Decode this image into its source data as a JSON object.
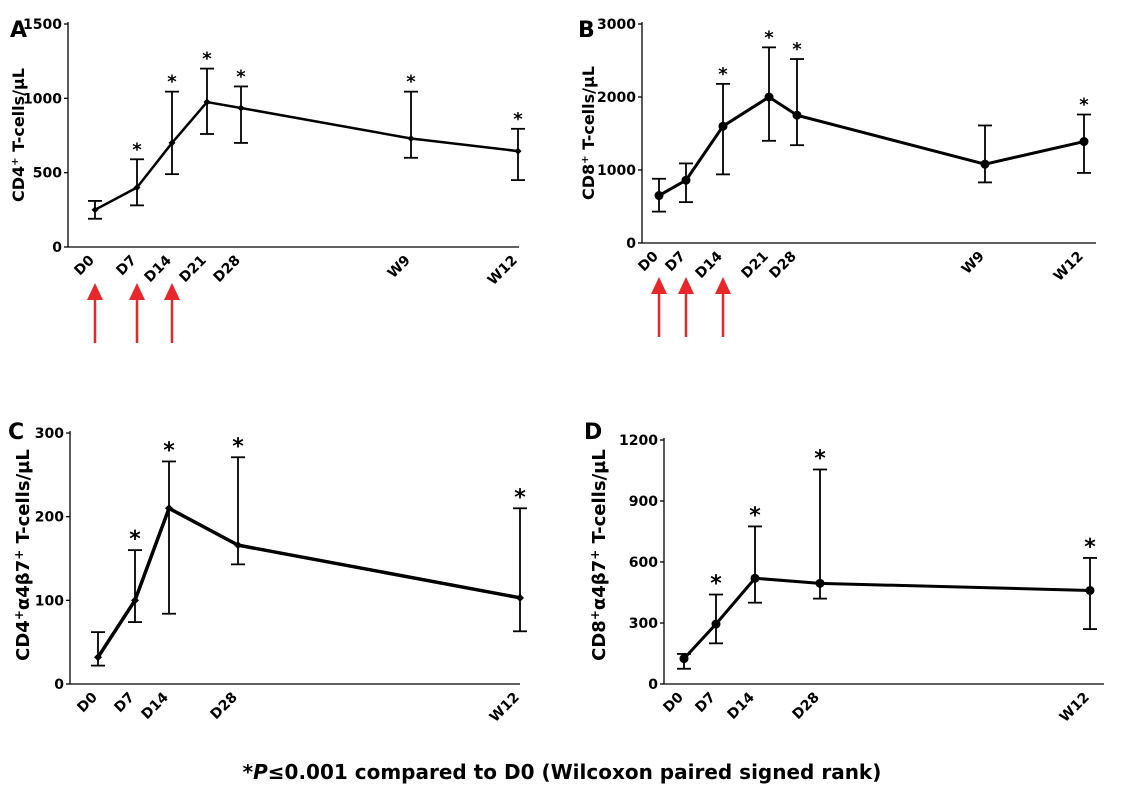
{
  "footnote": {
    "star": "*",
    "p": "P",
    "rest": "≤0.001 compared to D0 (Wilcoxon paired signed rank)"
  },
  "colors": {
    "line": "#000000",
    "arrow": "#e8272b"
  },
  "chart_data": [
    {
      "panel": "A",
      "type": "line",
      "ylabel_main": "CD4",
      "ylabel_sup": "+",
      "ylabel_rest": " T-cells/µL",
      "ylim": [
        0,
        1500
      ],
      "yticks": [
        0,
        500,
        1000,
        1500
      ],
      "marker": "diamond",
      "categories": [
        "D0",
        "D7",
        "D14",
        "D21",
        "D28",
        "W9",
        "W12"
      ],
      "x": [
        0,
        7,
        14,
        21,
        28,
        63,
        84
      ],
      "values": [
        250,
        400,
        700,
        975,
        935,
        730,
        645
      ],
      "err_low": [
        190,
        280,
        490,
        760,
        700,
        600,
        450
      ],
      "err_high": [
        310,
        590,
        1045,
        1200,
        1080,
        1045,
        795
      ],
      "significant": [
        false,
        true,
        true,
        true,
        true,
        true,
        true
      ],
      "arrows_at": [
        0,
        7,
        14
      ]
    },
    {
      "panel": "B",
      "type": "line",
      "ylabel_main": "CD8",
      "ylabel_sup": "+",
      "ylabel_rest": " T-cells/µL",
      "ylim": [
        0,
        3000
      ],
      "yticks": [
        0,
        1000,
        2000,
        3000
      ],
      "marker": "circle",
      "categories": [
        "D0",
        "D7",
        "D14",
        "D21",
        "D28",
        "W9",
        "W12"
      ],
      "x": [
        0,
        7,
        14,
        21,
        28,
        63,
        84
      ],
      "values": [
        650,
        860,
        1600,
        2000,
        1750,
        1080,
        1390
      ],
      "err_low": [
        430,
        560,
        940,
        1400,
        1340,
        830,
        960
      ],
      "err_high": [
        880,
        1090,
        2180,
        2680,
        2520,
        1610,
        1760
      ],
      "significant": [
        false,
        false,
        true,
        true,
        true,
        false,
        true
      ],
      "arrows_at": [
        0,
        7,
        14
      ]
    },
    {
      "panel": "C",
      "type": "line",
      "ylabel_main": "CD4",
      "ylabel_sup": "+",
      "ylabel_rest": "α4β7",
      "ylabel_sup2": "+",
      "ylabel_rest2": " T-cells/µL",
      "ylim": [
        0,
        300
      ],
      "yticks": [
        0,
        100,
        200,
        300
      ],
      "marker": "diamond",
      "categories": [
        "D0",
        "D7",
        "D14",
        "D28",
        "W12"
      ],
      "x": [
        0,
        7,
        14,
        28,
        84
      ],
      "values": [
        32,
        100,
        210,
        166,
        103
      ],
      "err_low": [
        22,
        74,
        84,
        143,
        63
      ],
      "err_high": [
        62,
        160,
        266,
        271,
        210
      ],
      "significant": [
        false,
        true,
        true,
        true,
        true
      ],
      "arrows_at": []
    },
    {
      "panel": "D",
      "type": "line",
      "ylabel_main": "CD8",
      "ylabel_sup": "+",
      "ylabel_rest": "α4β7",
      "ylabel_sup2": "+",
      "ylabel_rest2": " T-cells/µL",
      "ylim": [
        0,
        1200
      ],
      "yticks": [
        0,
        300,
        600,
        900,
        1200
      ],
      "marker": "circle",
      "categories": [
        "D0",
        "D7",
        "D14",
        "D28",
        "W12"
      ],
      "x": [
        0,
        7,
        14,
        28,
        84
      ],
      "values": [
        125,
        295,
        520,
        495,
        460
      ],
      "err_low": [
        75,
        200,
        400,
        420,
        270
      ],
      "err_high": [
        148,
        440,
        775,
        1055,
        620
      ],
      "significant": [
        false,
        true,
        true,
        true,
        true
      ],
      "arrows_at": []
    }
  ]
}
